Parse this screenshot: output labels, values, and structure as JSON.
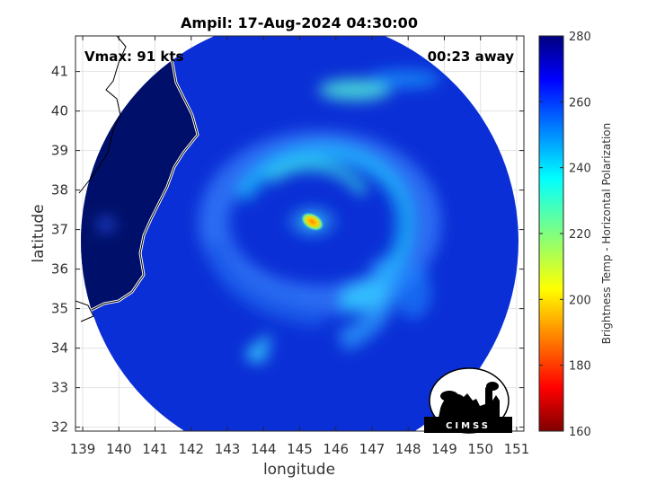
{
  "chart_data": {
    "type": "heatmap",
    "title": "Ampil: 17-Aug-2024 04:30:00",
    "xlabel": "longitude",
    "ylabel": "latitude",
    "xlim": [
      138.8,
      151.2
    ],
    "ylim": [
      31.9,
      41.9
    ],
    "x_ticks": [
      139,
      140,
      141,
      142,
      143,
      144,
      145,
      146,
      147,
      148,
      149,
      150,
      151
    ],
    "y_ticks": [
      32,
      33,
      34,
      35,
      36,
      37,
      38,
      39,
      40,
      41
    ],
    "grid": true,
    "annotations": {
      "vmax": "Vmax: 91 kts",
      "time_offset": "00:23 away"
    },
    "colorbar": {
      "label": "Brightness Temp - Horizontal Polarization",
      "range": [
        160,
        280
      ],
      "ticks": [
        160,
        180,
        200,
        220,
        240,
        260,
        280
      ],
      "colormap": "jet"
    },
    "swath": {
      "center": [
        145.0,
        36.7
      ],
      "radius_deg_lon": 6.05
    },
    "storm_center": [
      145.35,
      37.2
    ],
    "eye_min_temp": 195,
    "logo_text": "CIMSS"
  },
  "colors": {
    "background_cold": "#0b2fd6",
    "land": "#00106a",
    "coast": "#ffffff",
    "logo": "#000000"
  }
}
